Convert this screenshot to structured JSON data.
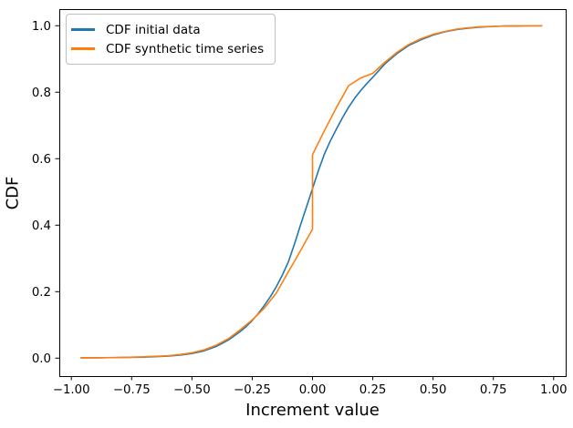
{
  "chart_data": {
    "type": "line",
    "title": "",
    "xlabel": "Increment value",
    "ylabel": "CDF",
    "grid": false,
    "xlim": [
      -1.05,
      1.05
    ],
    "ylim": [
      -0.054,
      1.05
    ],
    "xticks": {
      "values": [
        -1.0,
        -0.75,
        -0.5,
        -0.25,
        0.0,
        0.25,
        0.5,
        0.75,
        1.0
      ],
      "labels": [
        "−1.00",
        "−0.75",
        "−0.50",
        "−0.25",
        "0.00",
        "0.25",
        "0.50",
        "0.75",
        "1.00"
      ]
    },
    "yticks": {
      "values": [
        0.0,
        0.2,
        0.4,
        0.6,
        0.8,
        1.0
      ],
      "labels": [
        "0.0",
        "0.2",
        "0.4",
        "0.6",
        "0.8",
        "1.0"
      ]
    },
    "legend": {
      "position": "upper left"
    },
    "series": [
      {
        "name": "CDF initial data",
        "color": "#1f77b4",
        "points": [
          [
            -0.96,
            0.001
          ],
          [
            -0.9,
            0.001
          ],
          [
            -0.8,
            0.002
          ],
          [
            -0.7,
            0.003
          ],
          [
            -0.6,
            0.006
          ],
          [
            -0.55,
            0.009
          ],
          [
            -0.5,
            0.014
          ],
          [
            -0.45,
            0.022
          ],
          [
            -0.4,
            0.035
          ],
          [
            -0.35,
            0.054
          ],
          [
            -0.3,
            0.08
          ],
          [
            -0.275,
            0.095
          ],
          [
            -0.25,
            0.113
          ],
          [
            -0.225,
            0.134
          ],
          [
            -0.2,
            0.158
          ],
          [
            -0.175,
            0.185
          ],
          [
            -0.15,
            0.215
          ],
          [
            -0.125,
            0.25
          ],
          [
            -0.1,
            0.29
          ],
          [
            -0.075,
            0.343
          ],
          [
            -0.05,
            0.4
          ],
          [
            -0.025,
            0.455
          ],
          [
            0.0,
            0.51
          ],
          [
            0.025,
            0.565
          ],
          [
            0.05,
            0.615
          ],
          [
            0.075,
            0.655
          ],
          [
            0.1,
            0.69
          ],
          [
            0.125,
            0.724
          ],
          [
            0.15,
            0.755
          ],
          [
            0.175,
            0.782
          ],
          [
            0.2,
            0.805
          ],
          [
            0.225,
            0.826
          ],
          [
            0.25,
            0.845
          ],
          [
            0.3,
            0.885
          ],
          [
            0.35,
            0.916
          ],
          [
            0.4,
            0.941
          ],
          [
            0.45,
            0.958
          ],
          [
            0.5,
            0.972
          ],
          [
            0.55,
            0.982
          ],
          [
            0.6,
            0.989
          ],
          [
            0.65,
            0.993
          ],
          [
            0.7,
            0.996
          ],
          [
            0.75,
            0.998
          ],
          [
            0.8,
            0.999
          ],
          [
            0.85,
            0.999
          ],
          [
            0.9,
            1.0
          ],
          [
            0.95,
            1.0
          ]
        ]
      },
      {
        "name": "CDF synthetic time series",
        "color": "#ff7f0e",
        "points": [
          [
            -0.96,
            0.001
          ],
          [
            -0.9,
            0.001
          ],
          [
            -0.8,
            0.002
          ],
          [
            -0.7,
            0.004
          ],
          [
            -0.6,
            0.007
          ],
          [
            -0.55,
            0.011
          ],
          [
            -0.5,
            0.016
          ],
          [
            -0.45,
            0.025
          ],
          [
            -0.4,
            0.039
          ],
          [
            -0.35,
            0.058
          ],
          [
            -0.3,
            0.085
          ],
          [
            -0.25,
            0.115
          ],
          [
            -0.2,
            0.15
          ],
          [
            -0.15,
            0.196
          ],
          [
            -0.1,
            0.26
          ],
          [
            -0.05,
            0.323
          ],
          [
            0.0,
            0.388
          ],
          [
            0.0,
            0.612
          ],
          [
            0.05,
            0.685
          ],
          [
            0.1,
            0.755
          ],
          [
            0.15,
            0.82
          ],
          [
            0.2,
            0.843
          ],
          [
            0.25,
            0.857
          ],
          [
            0.3,
            0.89
          ],
          [
            0.35,
            0.92
          ],
          [
            0.4,
            0.944
          ],
          [
            0.45,
            0.961
          ],
          [
            0.5,
            0.974
          ],
          [
            0.55,
            0.983
          ],
          [
            0.6,
            0.99
          ],
          [
            0.65,
            0.994
          ],
          [
            0.7,
            0.997
          ],
          [
            0.75,
            0.998
          ],
          [
            0.8,
            0.999
          ],
          [
            0.85,
            1.0
          ],
          [
            0.9,
            1.0
          ],
          [
            0.95,
            1.0
          ]
        ]
      }
    ]
  }
}
